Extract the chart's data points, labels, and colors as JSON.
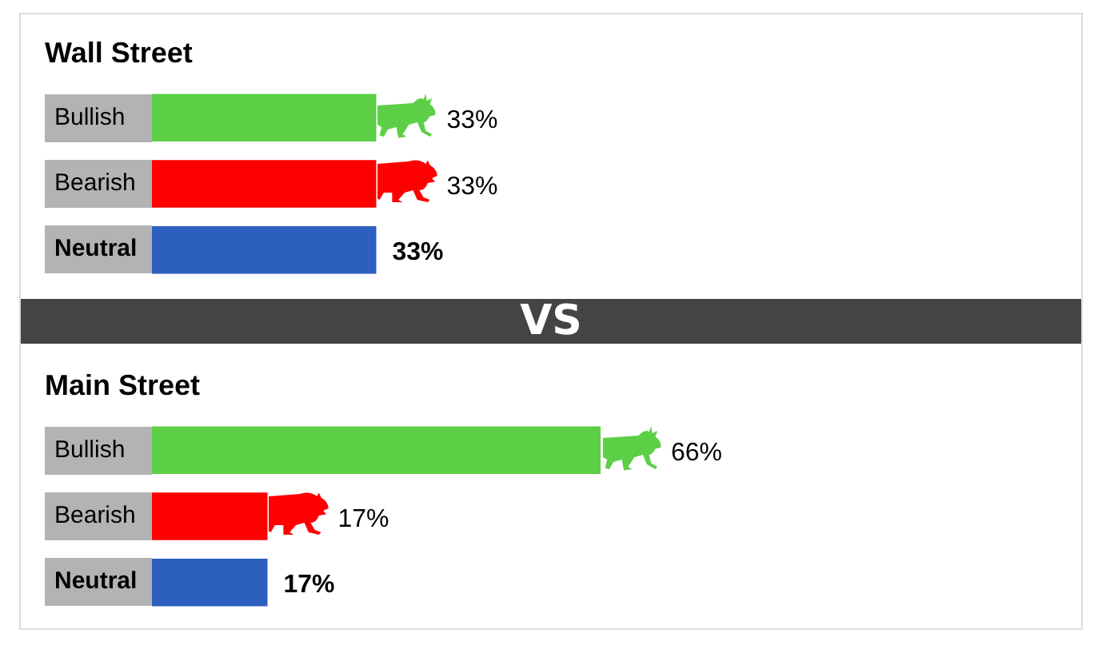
{
  "chart_data": [
    {
      "type": "bar",
      "orientation": "horizontal",
      "tick_labels": "y",
      "title": "Wall Street",
      "categories": [
        "Bullish",
        "Bearish",
        "Neutral"
      ],
      "values": [
        33,
        33,
        33
      ],
      "colors": [
        "#5ccf46",
        "#fe0000",
        "#2c5fbe"
      ],
      "value_labels": [
        "33%",
        "33%",
        "33%"
      ]
    },
    {
      "type": "bar",
      "orientation": "horizontal",
      "tick_labels": "y",
      "title": "Main Street",
      "annotations": [
        "VS"
      ],
      "categories": [
        "Bullish",
        "Bearish",
        "Neutral"
      ],
      "values": [
        66,
        17,
        17
      ],
      "colors": [
        "#5ccf46",
        "#fe0000",
        "#2c5fbe"
      ],
      "value_labels": [
        "66%",
        "17%",
        "17%"
      ]
    }
  ]
}
